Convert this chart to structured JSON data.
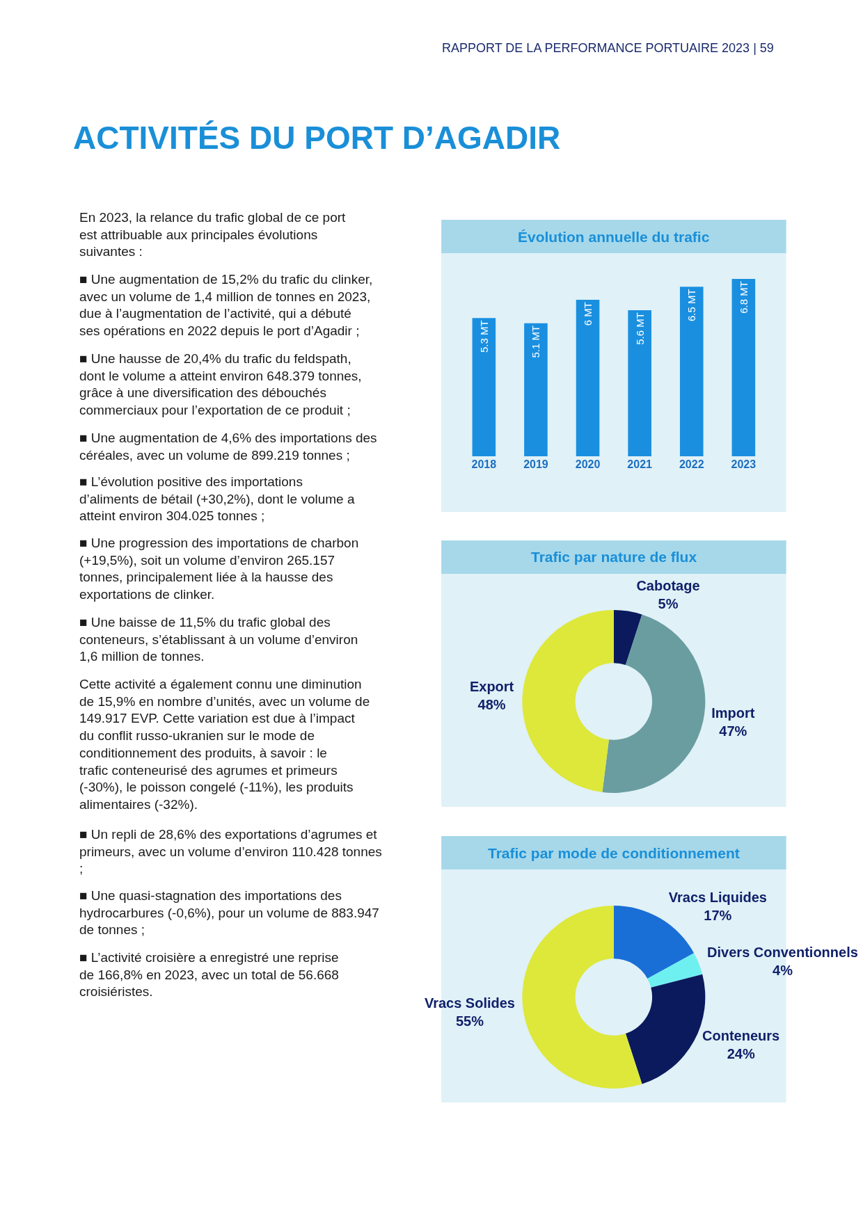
{
  "chart_data": [
    {
      "type": "other",
      "title": "ACTIVITÉS DU PORT D’AGADIR",
      "subtitle": "RAPPORT DE LA PERFORMANCE PORTUAIRE 2023 | 59",
      "annotations": [
        "En 2023, la relance du trafic global de ce port est attribuable aux principales évolutions suivantes :",
        "■ Une augmentation de 15,2% du trafic du clinker, avec un volume de 1,4 million de tonnes en 2023, due à l’augmentation de l’activité, qui a débuté ses opérations en 2022 depuis le port d’Agadir ;",
        "■ Une hausse de 20,4% du trafic du feldspath, dont le volume a atteint environ 648.379 tonnes, grâce à une diversification des débouchés commerciaux pour l’exportation de ce produit ;",
        "■ Une augmentation de 4,6% des importations des céréales, avec un volume de 899.219 tonnes ;",
        "■ L’évolution positive des importations d’aliments de bétail (+30,2%), dont le volume a atteint environ 304.025 tonnes ;",
        "■ Une progression des importations de charbon (+19,5%), soit un volume d’environ 265.157 tonnes, principalement liée à la hausse des exportations de clinker.",
        "■ Une baisse de 11,5% du trafic global des conteneurs, s’établissant à un volume d’environ 1,6 million de tonnes.",
        "Cette activité a également connu une diminution de 15,9% en nombre d’unités, avec un volume de 149.917 EVP. Cette variation est due à l’impact du conflit russo-ukranien sur le mode de conditionnement des produits, à savoir : le trafic conteneurisé des agrumes et primeurs (-30%), le poisson congelé (-11%), les produits alimentaires (-32%).",
        "■ Un repli de 28,6% des exportations d’agrumes et primeurs, avec un volume d’environ 110.428 tonnes ;",
        "■ Une quasi-stagnation des importations des hydrocarbures (-0,6%), pour un volume de 883.947 de tonnes ;",
        "■ L’activité croisière a enregistré une reprise de 166,8% en 2023, avec un total de 56.668 croisiéristes."
      ]
    },
    {
      "type": "bar",
      "title": "Évolution annuelle du trafic",
      "categories": [
        "2018",
        "2019",
        "2020",
        "2021",
        "2022",
        "2023"
      ],
      "values": [
        5.3,
        5.1,
        6,
        5.6,
        6.5,
        6.8
      ],
      "value_labels": [
        "5.3 MT",
        "5.1 MT",
        "6 MT",
        "5.6 MT",
        "6.5 MT",
        "6.8 MT"
      ],
      "color": "#1a8fe0"
    },
    {
      "type": "donut",
      "title": "Trafic par nature de flux",
      "categories": [
        "Cabotage",
        "Import",
        "Export"
      ],
      "values": [
        5,
        47,
        48
      ],
      "value_labels": [
        "5%",
        "47%",
        "48%"
      ],
      "colors": [
        "#0a1a5c",
        "#6a9da0",
        "#dde83a"
      ]
    },
    {
      "type": "donut",
      "title": "Trafic par mode de conditionnement",
      "categories": [
        "Vracs Liquides",
        "Divers Conventionnels",
        "Conteneurs",
        "Vracs Solides"
      ],
      "values": [
        17,
        4,
        24,
        55
      ],
      "value_labels": [
        "17%",
        "4%",
        "24%",
        "55%"
      ],
      "colors": [
        "#1a6fd6",
        "#6ff0f0",
        "#0a1a5c",
        "#dde83a"
      ]
    }
  ]
}
